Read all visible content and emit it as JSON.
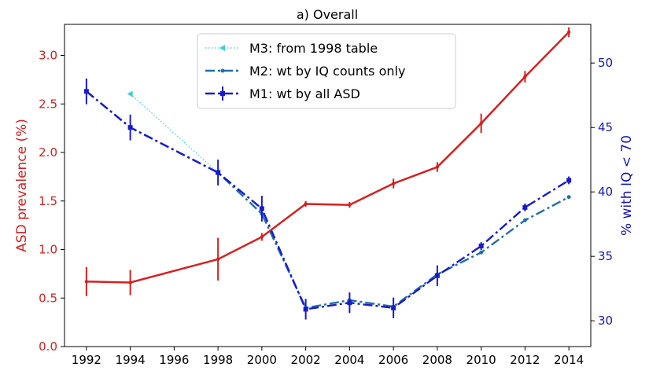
{
  "chart_data": {
    "type": "line",
    "title": "a) Overall",
    "xlabel": "",
    "x": [
      1992,
      1994,
      1998,
      2000,
      2002,
      2004,
      2006,
      2008,
      2010,
      2012,
      2014
    ],
    "x_ticks": [
      1992,
      1994,
      1996,
      1998,
      2000,
      2002,
      2004,
      2006,
      2008,
      2010,
      2012,
      2014
    ],
    "xlim": [
      1991,
      2015
    ],
    "left_axis": {
      "label": "ASD prevalence (%)",
      "color": "#d62020",
      "ylim": [
        0,
        3.32
      ],
      "ticks": [
        "0.0",
        "0.5",
        "1.0",
        "1.5",
        "2.0",
        "2.5",
        "3.0"
      ]
    },
    "right_axis": {
      "label": "% with IQ < 70",
      "color": "#1515b5",
      "ylim": [
        28,
        53
      ],
      "ticks": [
        "30",
        "35",
        "40",
        "45",
        "50"
      ]
    },
    "series": [
      {
        "name": "",
        "axis": "left",
        "color": "#d62020",
        "style": "solid",
        "x": [
          1992,
          1994,
          1998,
          2000,
          2002,
          2004,
          2006,
          2008,
          2010,
          2012,
          2014
        ],
        "values": [
          0.67,
          0.66,
          0.9,
          1.13,
          1.47,
          1.46,
          1.68,
          1.85,
          2.3,
          2.78,
          3.24
        ],
        "errors": [
          0.15,
          0.13,
          0.22,
          0.04,
          0.03,
          0.03,
          0.05,
          0.05,
          0.1,
          0.06,
          0.05
        ]
      },
      {
        "name": "M3: from 1998 table",
        "axis": "right",
        "color": "#3ecfcf",
        "style": "dotted",
        "marker": "triangle",
        "x": [
          1994,
          1998
        ],
        "values": [
          47.6,
          41.5
        ],
        "errors": [
          0,
          0
        ]
      },
      {
        "name": "M2: wt by IQ counts only",
        "axis": "right",
        "color": "#1f6fa8",
        "style": "dashdot",
        "marker": "dot",
        "x": [
          1992,
          1994,
          1998,
          2000,
          2002,
          2004,
          2006,
          2008,
          2010,
          2012,
          2014
        ],
        "values": [
          47.8,
          45.0,
          41.5,
          38.3,
          31.0,
          31.6,
          31.1,
          33.6,
          35.3,
          37.8,
          39.6
        ],
        "errors": [
          0,
          0,
          0,
          0,
          0,
          0,
          0,
          0,
          0,
          0,
          0
        ]
      },
      {
        "name": "M1: wt by all ASD",
        "axis": "right",
        "color": "#1a1acc",
        "style": "dashdot",
        "marker": "square",
        "x": [
          1992,
          1994,
          1998,
          2000,
          2002,
          2004,
          2006,
          2008,
          2010,
          2012,
          2014
        ],
        "values": [
          47.8,
          45.0,
          41.5,
          38.7,
          30.9,
          31.4,
          31.0,
          33.5,
          35.8,
          38.8,
          40.9
        ],
        "errors": [
          1.0,
          1.0,
          1.0,
          1.0,
          0.8,
          0.8,
          0.8,
          0.8,
          0.3,
          0.3,
          0.3
        ]
      }
    ],
    "legend": {
      "placement": "top-center",
      "entries": [
        "M3: from 1998 table",
        "M2: wt by IQ counts only",
        "M1: wt by all ASD"
      ]
    },
    "grid": false
  }
}
